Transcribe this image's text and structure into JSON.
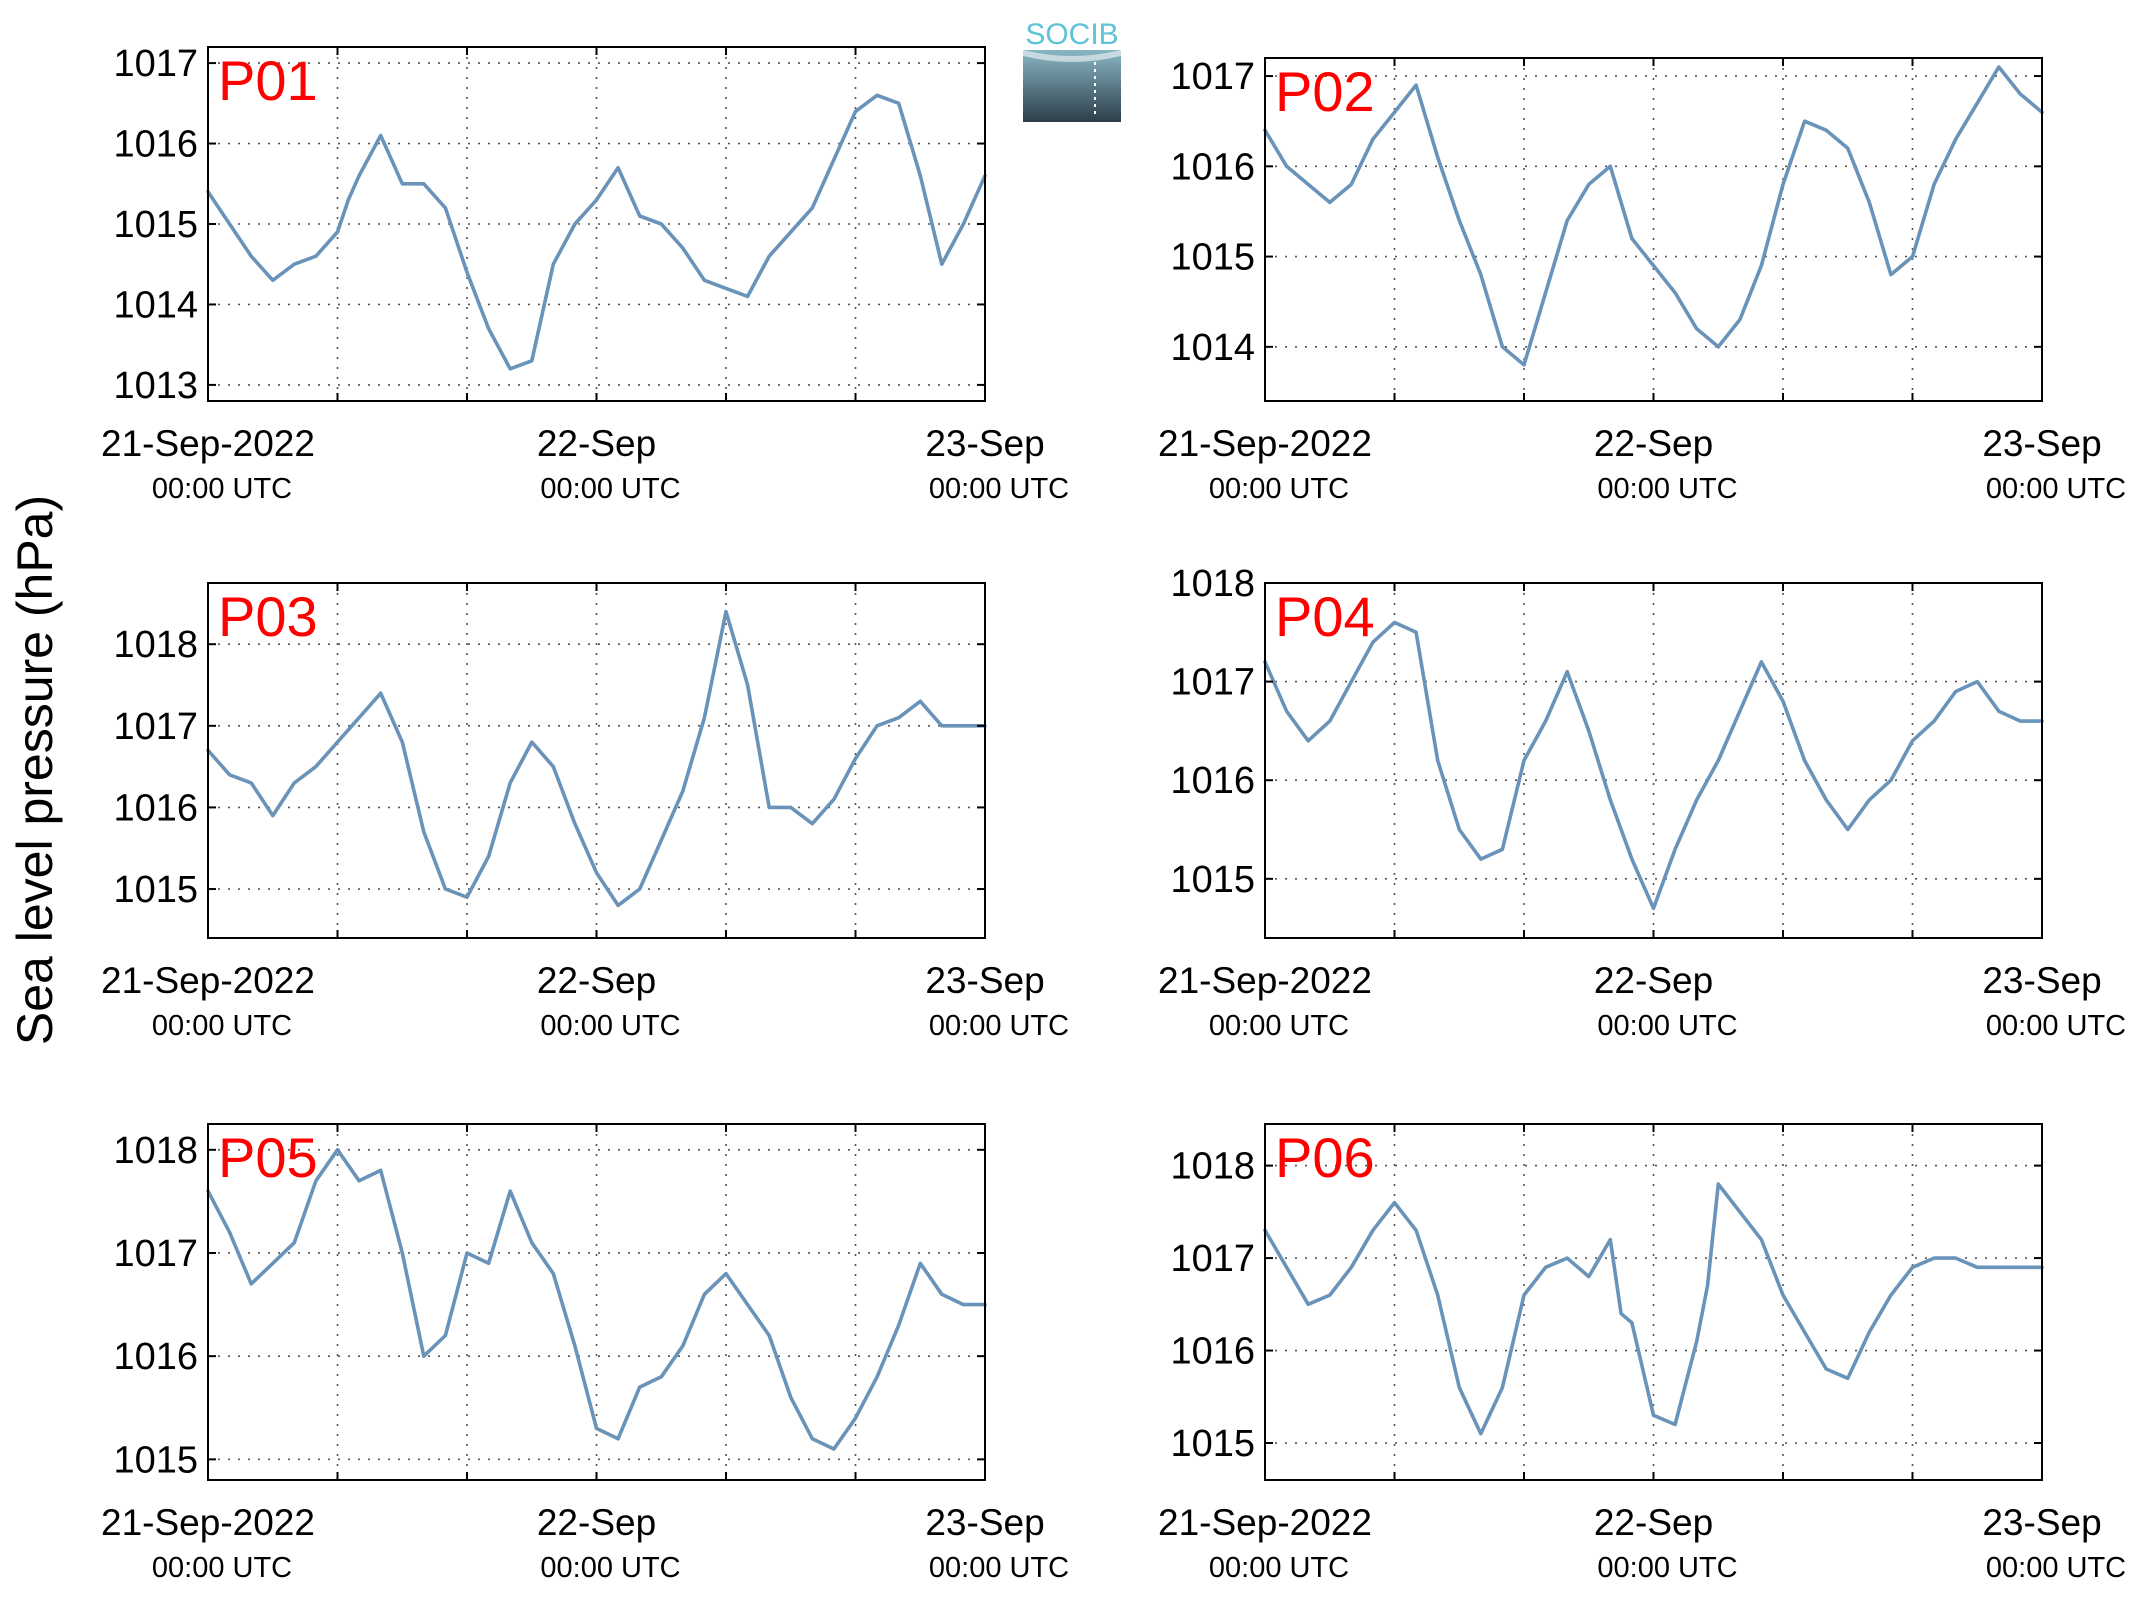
{
  "figure": {
    "ylabel": "Sea level pressure (hPa)",
    "logo_text": "SOCIB",
    "line_color": "#6a93b9",
    "panel_label_color": "#ff0000"
  },
  "chart_data": [
    {
      "type": "line",
      "label": "P01",
      "ylim": [
        1012.8,
        1017.2
      ],
      "yticks": [
        1013,
        1014,
        1015,
        1016,
        1017
      ],
      "xticks": [
        {
          "date": "21-Sep-2022",
          "time": "00:00 UTC"
        },
        {
          "date": "22-Sep",
          "time": "00:00 UTC"
        },
        {
          "date": "23-Sep",
          "time": "00:00 UTC"
        }
      ],
      "x_hours": [
        0,
        2,
        4,
        6,
        8,
        10,
        12,
        13,
        14,
        16,
        18,
        20,
        22,
        24,
        26,
        28,
        30,
        32,
        34,
        36,
        38,
        40,
        42,
        44,
        46,
        48,
        50,
        52,
        54,
        56,
        58,
        60,
        62,
        64,
        66,
        68,
        70,
        72
      ],
      "values": [
        1015.4,
        1015.0,
        1014.6,
        1014.3,
        1014.5,
        1014.6,
        1014.9,
        1015.3,
        1015.6,
        1016.1,
        1015.5,
        1015.5,
        1015.2,
        1014.4,
        1013.7,
        1013.2,
        1013.3,
        1014.5,
        1015.0,
        1015.3,
        1015.7,
        1015.1,
        1015.0,
        1014.7,
        1014.3,
        1014.2,
        1014.1,
        1014.6,
        1014.9,
        1015.2,
        1015.8,
        1016.4,
        1016.6,
        1016.5,
        1015.6,
        1014.5,
        1015.0,
        1015.6
      ]
    },
    {
      "type": "line",
      "label": "P02",
      "ylim": [
        1013.4,
        1017.2
      ],
      "yticks": [
        1014,
        1015,
        1016,
        1017
      ],
      "xticks": [
        {
          "date": "21-Sep-2022",
          "time": "00:00 UTC"
        },
        {
          "date": "22-Sep",
          "time": "00:00 UTC"
        },
        {
          "date": "23-Sep",
          "time": "00:00 UTC"
        }
      ],
      "x_hours": [
        0,
        2,
        4,
        6,
        8,
        10,
        12,
        14,
        16,
        18,
        20,
        22,
        24,
        26,
        28,
        30,
        32,
        34,
        36,
        38,
        40,
        42,
        44,
        46,
        48,
        50,
        52,
        54,
        56,
        58,
        60,
        62,
        64,
        66,
        68,
        70,
        72
      ],
      "values": [
        1016.4,
        1016.0,
        1015.8,
        1015.6,
        1015.8,
        1016.3,
        1016.6,
        1016.9,
        1016.1,
        1015.4,
        1014.8,
        1014.0,
        1013.8,
        1014.6,
        1015.4,
        1015.8,
        1016.0,
        1015.2,
        1014.9,
        1014.6,
        1014.2,
        1014.0,
        1014.3,
        1014.9,
        1015.8,
        1016.5,
        1016.4,
        1016.2,
        1015.6,
        1014.8,
        1015.0,
        1015.8,
        1016.3,
        1016.7,
        1017.1,
        1016.8,
        1016.6
      ]
    },
    {
      "type": "line",
      "label": "P03",
      "ylim": [
        1014.4,
        1018.75
      ],
      "yticks": [
        1015,
        1016,
        1017,
        1018
      ],
      "xticks": [
        {
          "date": "21-Sep-2022",
          "time": "00:00 UTC"
        },
        {
          "date": "22-Sep",
          "time": "00:00 UTC"
        },
        {
          "date": "23-Sep",
          "time": "00:00 UTC"
        }
      ],
      "x_hours": [
        0,
        2,
        4,
        6,
        8,
        10,
        12,
        14,
        16,
        18,
        20,
        22,
        24,
        26,
        28,
        30,
        32,
        34,
        36,
        38,
        40,
        42,
        44,
        46,
        48,
        50,
        52,
        54,
        56,
        58,
        60,
        62,
        64,
        66,
        68,
        70,
        72
      ],
      "values": [
        1016.7,
        1016.4,
        1016.3,
        1015.9,
        1016.3,
        1016.5,
        1016.8,
        1017.1,
        1017.4,
        1016.8,
        1015.7,
        1015.0,
        1014.9,
        1015.4,
        1016.3,
        1016.8,
        1016.5,
        1015.8,
        1015.2,
        1014.8,
        1015.0,
        1015.6,
        1016.2,
        1017.1,
        1018.4,
        1017.5,
        1016.0,
        1016.0,
        1015.8,
        1016.1,
        1016.6,
        1017.0,
        1017.1,
        1017.3,
        1017.0,
        1017.0,
        1017.0
      ]
    },
    {
      "type": "line",
      "label": "P04",
      "ylim": [
        1014.4,
        1018.0
      ],
      "yticks": [
        1015,
        1016,
        1017,
        1018
      ],
      "xticks": [
        {
          "date": "21-Sep-2022",
          "time": "00:00 UTC"
        },
        {
          "date": "22-Sep",
          "time": "00:00 UTC"
        },
        {
          "date": "23-Sep",
          "time": "00:00 UTC"
        }
      ],
      "x_hours": [
        0,
        2,
        4,
        6,
        8,
        10,
        12,
        14,
        16,
        18,
        20,
        22,
        24,
        26,
        28,
        30,
        32,
        34,
        36,
        38,
        40,
        42,
        44,
        46,
        48,
        50,
        52,
        54,
        56,
        58,
        60,
        62,
        64,
        66,
        68,
        70,
        72
      ],
      "values": [
        1017.2,
        1016.7,
        1016.4,
        1016.6,
        1017.0,
        1017.4,
        1017.6,
        1017.5,
        1016.2,
        1015.5,
        1015.2,
        1015.3,
        1016.2,
        1016.6,
        1017.1,
        1016.5,
        1015.8,
        1015.2,
        1014.7,
        1015.3,
        1015.8,
        1016.2,
        1016.7,
        1017.2,
        1016.8,
        1016.2,
        1015.8,
        1015.5,
        1015.8,
        1016.0,
        1016.4,
        1016.6,
        1016.9,
        1017.0,
        1016.7,
        1016.6,
        1016.6
      ]
    },
    {
      "type": "line",
      "label": "P05",
      "ylim": [
        1014.8,
        1018.25
      ],
      "yticks": [
        1015,
        1016,
        1017,
        1018
      ],
      "xticks": [
        {
          "date": "21-Sep-2022",
          "time": "00:00 UTC"
        },
        {
          "date": "22-Sep",
          "time": "00:00 UTC"
        },
        {
          "date": "23-Sep",
          "time": "00:00 UTC"
        }
      ],
      "x_hours": [
        0,
        2,
        4,
        6,
        8,
        10,
        12,
        14,
        16,
        18,
        20,
        22,
        24,
        26,
        28,
        30,
        32,
        34,
        36,
        38,
        40,
        42,
        44,
        46,
        48,
        50,
        52,
        54,
        56,
        58,
        60,
        62,
        64,
        66,
        68,
        70,
        72
      ],
      "values": [
        1017.6,
        1017.2,
        1016.7,
        1016.9,
        1017.1,
        1017.7,
        1018.0,
        1017.7,
        1017.8,
        1017.0,
        1016.0,
        1016.2,
        1017.0,
        1016.9,
        1017.6,
        1017.1,
        1016.8,
        1016.1,
        1015.3,
        1015.2,
        1015.7,
        1015.8,
        1016.1,
        1016.6,
        1016.8,
        1016.5,
        1016.2,
        1015.6,
        1015.2,
        1015.1,
        1015.4,
        1015.8,
        1016.3,
        1016.9,
        1016.6,
        1016.5,
        1016.5
      ]
    },
    {
      "type": "line",
      "label": "P06",
      "ylim": [
        1014.6,
        1018.45
      ],
      "yticks": [
        1015,
        1016,
        1017,
        1018
      ],
      "xticks": [
        {
          "date": "21-Sep-2022",
          "time": "00:00 UTC"
        },
        {
          "date": "22-Sep",
          "time": "00:00 UTC"
        },
        {
          "date": "23-Sep",
          "time": "00:00 UTC"
        }
      ],
      "x_hours": [
        0,
        2,
        4,
        6,
        8,
        10,
        12,
        14,
        16,
        18,
        20,
        22,
        24,
        26,
        28,
        30,
        32,
        33,
        34,
        36,
        38,
        40,
        41,
        42,
        44,
        46,
        48,
        50,
        52,
        54,
        56,
        58,
        60,
        62,
        64,
        66,
        68,
        70,
        72
      ],
      "values": [
        1017.3,
        1016.9,
        1016.5,
        1016.6,
        1016.9,
        1017.3,
        1017.6,
        1017.3,
        1016.6,
        1015.6,
        1015.1,
        1015.6,
        1016.6,
        1016.9,
        1017.0,
        1016.8,
        1017.2,
        1016.4,
        1016.3,
        1015.3,
        1015.2,
        1016.1,
        1016.7,
        1017.8,
        1017.5,
        1017.2,
        1016.6,
        1016.2,
        1015.8,
        1015.7,
        1016.2,
        1016.6,
        1016.9,
        1017.0,
        1017.0,
        1016.9,
        1016.9,
        1016.9,
        1016.9
      ]
    }
  ]
}
